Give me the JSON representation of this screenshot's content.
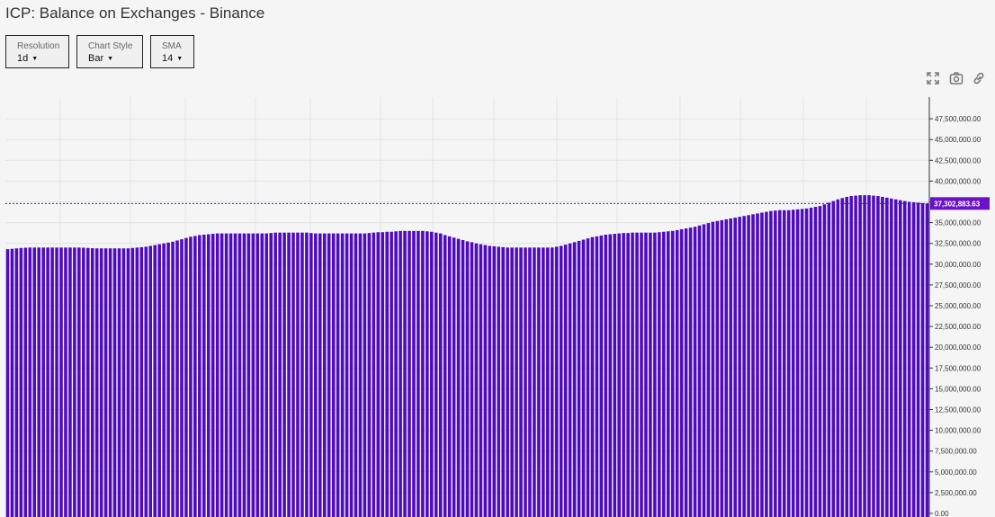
{
  "page": {
    "title": "ICP: Balance on Exchanges - Binance"
  },
  "controls": [
    {
      "label": "Resolution",
      "value": "1d"
    },
    {
      "label": "Chart Style",
      "value": "Bar"
    },
    {
      "label": "SMA",
      "value": "14"
    }
  ],
  "toolbar": {
    "icons": [
      "fullscreen-icon",
      "camera-icon",
      "link-icon"
    ]
  },
  "colors": {
    "bar": "#4f0bbc",
    "accent": "#6a12c8",
    "grid": "#e2e2e2",
    "reference_line": "#5a14c4"
  },
  "chart_data": {
    "type": "bar",
    "title": "ICP: Balance on Exchanges - Binance",
    "xlabel": "",
    "ylabel": "",
    "ylim": [
      0,
      49000000
    ],
    "yticks": [
      0,
      2500000,
      5000000,
      7500000,
      10000000,
      12500000,
      15000000,
      17500000,
      20000000,
      22500000,
      25000000,
      27500000,
      30000000,
      32500000,
      35000000,
      37500000,
      40000000,
      42500000,
      45000000,
      47500000
    ],
    "ytick_labels": [
      "0.00",
      "2,500,000.00",
      "5,000,000.00",
      "7,500,000.00",
      "10,000,000.00",
      "12,500,000.00",
      "15,000,000.00",
      "17,500,000.00",
      "20,000,000.00",
      "22,500,000.00",
      "25,000,000.00",
      "27,500,000.00",
      "30,000,000.00",
      "32,500,000.00",
      "35,000,000.00",
      "37,500,000.00",
      "40,000,000.00",
      "42,500,000.00",
      "45,000,000.00",
      "47,500,000.00"
    ],
    "current_value": 37302883.63,
    "current_value_label": "37,302,883.63",
    "grid": true,
    "values": [
      31800000,
      31850000,
      31900000,
      31950000,
      31980000,
      32000000,
      32000000,
      32000000,
      32000000,
      32000000,
      32000000,
      32000000,
      32000000,
      32000000,
      32000000,
      32000000,
      32000000,
      31980000,
      31950000,
      31920000,
      31900000,
      31900000,
      31900000,
      31900000,
      31900000,
      31900000,
      31900000,
      31900000,
      31950000,
      32000000,
      32050000,
      32100000,
      32200000,
      32300000,
      32400000,
      32500000,
      32600000,
      32700000,
      32850000,
      33000000,
      33150000,
      33300000,
      33400000,
      33500000,
      33550000,
      33600000,
      33650000,
      33700000,
      33700000,
      33700000,
      33700000,
      33700000,
      33700000,
      33700000,
      33700000,
      33700000,
      33700000,
      33700000,
      33700000,
      33750000,
      33800000,
      33800000,
      33800000,
      33800000,
      33800000,
      33800000,
      33800000,
      33800000,
      33750000,
      33700000,
      33700000,
      33700000,
      33700000,
      33700000,
      33700000,
      33700000,
      33700000,
      33700000,
      33700000,
      33700000,
      33700000,
      33750000,
      33800000,
      33850000,
      33850000,
      33900000,
      33900000,
      33950000,
      34000000,
      34000000,
      34000000,
      34000000,
      34000000,
      34000000,
      33950000,
      33900000,
      33800000,
      33700000,
      33500000,
      33350000,
      33200000,
      33050000,
      32900000,
      32750000,
      32650000,
      32500000,
      32400000,
      32300000,
      32200000,
      32150000,
      32100000,
      32050000,
      32000000,
      32000000,
      32000000,
      32000000,
      32000000,
      32000000,
      32000000,
      32000000,
      32000000,
      32000000,
      32000000,
      32100000,
      32200000,
      32350000,
      32500000,
      32650000,
      32800000,
      32950000,
      33100000,
      33250000,
      33350000,
      33450000,
      33550000,
      33600000,
      33650000,
      33700000,
      33750000,
      33750000,
      33800000,
      33800000,
      33800000,
      33800000,
      33800000,
      33800000,
      33850000,
      33900000,
      33950000,
      34000000,
      34100000,
      34200000,
      34300000,
      34400000,
      34500000,
      34650000,
      34800000,
      34950000,
      35100000,
      35200000,
      35300000,
      35400000,
      35500000,
      35600000,
      35700000,
      35800000,
      35900000,
      36000000,
      36100000,
      36200000,
      36300000,
      36400000,
      36450000,
      36500000,
      36500000,
      36500000,
      36550000,
      36600000,
      36650000,
      36700000,
      36800000,
      36900000,
      37000000,
      37200000,
      37400000,
      37600000,
      37800000,
      37950000,
      38100000,
      38200000,
      38250000,
      38300000,
      38300000,
      38300000,
      38250000,
      38200000,
      38100000,
      38000000,
      37900000,
      37800000,
      37700000,
      37600000,
      37500000,
      37450000,
      37400000,
      37350000,
      37302883.63
    ]
  }
}
